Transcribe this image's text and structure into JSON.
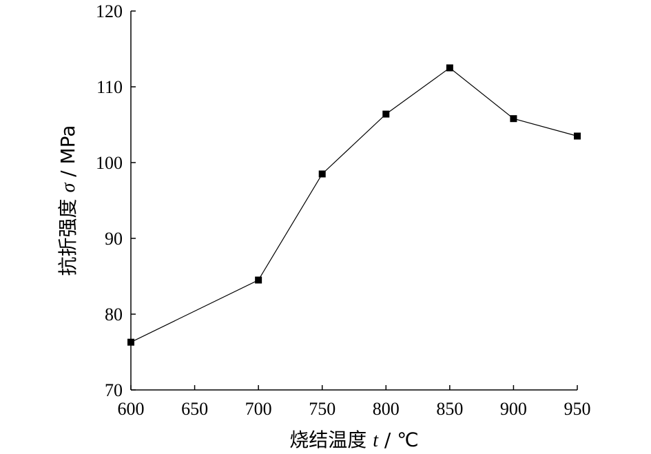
{
  "chart_data": {
    "type": "line",
    "xlabel": {
      "name": "烧结温度",
      "symbol": "t",
      "unit": "/ ℃"
    },
    "ylabel": {
      "name": "抗折强度",
      "symbol": "σ",
      "unit": "/ MPa"
    },
    "xlim": [
      600,
      950
    ],
    "ylim": [
      70,
      120
    ],
    "xticks": [
      600,
      650,
      700,
      750,
      800,
      850,
      900,
      950
    ],
    "yticks": [
      70,
      80,
      90,
      100,
      110,
      120
    ],
    "grid": false,
    "legend": "none",
    "marker": "square",
    "color": "#000000",
    "series": [
      {
        "x": [
          600,
          700,
          750,
          800,
          850,
          900,
          950
        ],
        "y": [
          76.3,
          84.5,
          98.5,
          106.4,
          112.5,
          105.8,
          103.5
        ]
      }
    ]
  }
}
